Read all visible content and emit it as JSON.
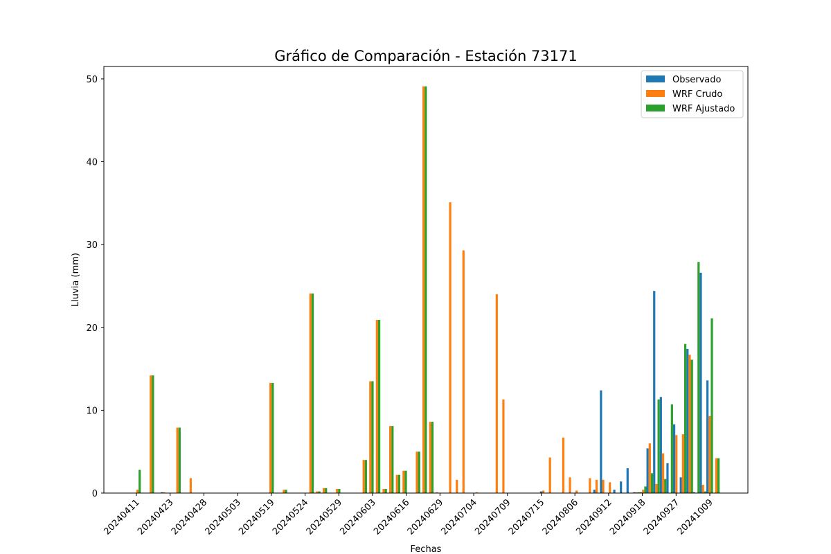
{
  "chart_data": {
    "type": "bar",
    "title": "Gráfico de Comparación - Estación 73171",
    "xlabel": "Fechas",
    "ylabel": "Lluvia (mm)",
    "ylim": [
      0,
      51.5
    ],
    "yticks": [
      0,
      10,
      20,
      30,
      40,
      50
    ],
    "xtick_labels": [
      "20240411",
      "20240423",
      "20240428",
      "20240503",
      "20240519",
      "20240524",
      "20240529",
      "20240603",
      "20240616",
      "20240629",
      "20240704",
      "20240709",
      "20240715",
      "20240806",
      "20240912",
      "20240918",
      "20240927",
      "20241009"
    ],
    "legend_position": "top-right",
    "grid": false,
    "x_count": 88,
    "series": [
      {
        "name": "Observado",
        "color": "#1f77b4",
        "values": [
          0,
          0,
          0,
          0,
          0.1,
          0,
          0,
          0,
          0,
          0,
          0,
          0,
          0,
          0,
          0,
          0,
          0,
          0,
          0,
          0,
          0,
          0,
          0,
          0,
          0,
          0,
          0,
          0,
          0,
          0,
          0,
          0,
          0,
          0,
          0,
          0,
          0,
          0,
          0,
          0,
          0,
          0,
          0,
          0,
          0,
          0,
          0,
          0,
          0,
          0,
          0,
          0,
          0,
          0,
          0,
          0,
          0,
          0,
          0,
          0,
          0,
          0.2,
          0,
          0,
          0,
          0,
          0,
          0,
          0,
          0.4,
          12.4,
          0,
          0.4,
          1.4,
          3.0,
          0.1,
          0.1,
          5.4,
          24.4,
          11.6,
          3.6,
          8.3,
          1.9,
          17.4,
          0.1,
          26.6,
          13.6,
          0
        ]
      },
      {
        "name": "WRF Crudo",
        "color": "#ff7f0e",
        "values": [
          0.4,
          0,
          14.2,
          0,
          0.1,
          0,
          7.9,
          0,
          1.8,
          0,
          0,
          0,
          0,
          0,
          0,
          0,
          0,
          0,
          0,
          0,
          13.3,
          0,
          0.4,
          0,
          0,
          0,
          24.1,
          0.2,
          0.6,
          0,
          0.5,
          0,
          0,
          0,
          4.0,
          13.5,
          20.9,
          0.5,
          8.1,
          2.2,
          2.7,
          0,
          5.0,
          49.1,
          8.6,
          0.1,
          0,
          35.1,
          1.6,
          29.3,
          0,
          0.1,
          0,
          0,
          24.0,
          11.3,
          0,
          0,
          0,
          0,
          0,
          0.3,
          4.3,
          0,
          6.7,
          1.9,
          0.3,
          0,
          1.8,
          1.6,
          1.6,
          1.3,
          0,
          0,
          0,
          0.1,
          0.4,
          6.0,
          1.1,
          4.8,
          0,
          7.0,
          7.1,
          16.7,
          0,
          1.0,
          9.3,
          4.2
        ]
      },
      {
        "name": "WRF Ajustado",
        "color": "#2ca02c",
        "values": [
          2.8,
          0,
          14.2,
          0,
          0,
          0,
          7.9,
          0,
          0,
          0,
          0,
          0,
          0,
          0,
          0,
          0,
          0,
          0,
          0,
          0,
          13.3,
          0,
          0.4,
          0,
          0,
          0,
          24.1,
          0.2,
          0.6,
          0,
          0.5,
          0,
          0,
          0,
          4.0,
          13.5,
          20.9,
          0.5,
          8.1,
          2.2,
          2.7,
          0,
          5.0,
          49.1,
          8.6,
          0,
          0,
          0,
          0,
          0,
          0,
          0,
          0,
          0,
          0,
          0,
          0,
          0,
          0,
          0,
          0,
          0,
          0,
          0,
          0,
          0,
          0,
          0,
          0,
          0,
          0,
          0,
          0,
          0,
          0,
          0.1,
          0.8,
          2.4,
          11.3,
          1.7,
          10.7,
          0,
          18.0,
          16.1,
          27.9,
          0.2,
          21.1,
          4.2
        ]
      }
    ]
  }
}
